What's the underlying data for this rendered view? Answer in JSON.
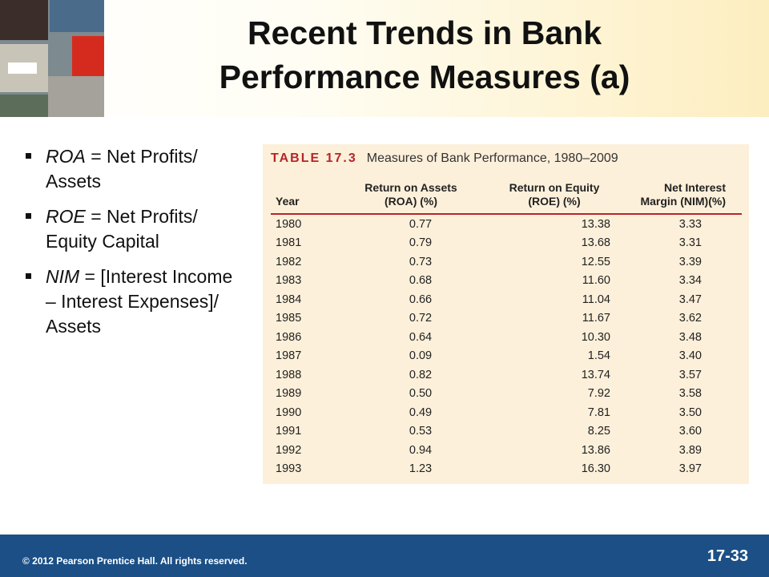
{
  "header": {
    "title": "Recent Trends in Bank Performance Measures (a)"
  },
  "bullets": [
    {
      "term": "ROA",
      "text": " = Net Profits/ Assets"
    },
    {
      "term": "ROE",
      "text": " = Net Profits/ Equity Capital"
    },
    {
      "term": "NIM",
      "text": " = [Interest Income – Interest Expenses]/ Assets"
    }
  ],
  "table": {
    "label": "TABLE 17.3",
    "caption": "Measures of Bank Performance, 1980–2009",
    "columns": [
      [
        "Year"
      ],
      [
        "Return on Assets",
        "(ROA) (%)"
      ],
      [
        "Return on Equity",
        "(ROE) (%)"
      ],
      [
        "Net Interest",
        "Margin (NIM)(%)"
      ]
    ],
    "rows": [
      [
        "1980",
        "0.77",
        "13.38",
        "3.33"
      ],
      [
        "1981",
        "0.79",
        "13.68",
        "3.31"
      ],
      [
        "1982",
        "0.73",
        "12.55",
        "3.39"
      ],
      [
        "1983",
        "0.68",
        "11.60",
        "3.34"
      ],
      [
        "1984",
        "0.66",
        "11.04",
        "3.47"
      ],
      [
        "1985",
        "0.72",
        "11.67",
        "3.62"
      ],
      [
        "1986",
        "0.64",
        "10.30",
        "3.48"
      ],
      [
        "1987",
        "0.09",
        "1.54",
        "3.40"
      ],
      [
        "1988",
        "0.82",
        "13.74",
        "3.57"
      ],
      [
        "1989",
        "0.50",
        "7.92",
        "3.58"
      ],
      [
        "1990",
        "0.49",
        "7.81",
        "3.50"
      ],
      [
        "1991",
        "0.53",
        "8.25",
        "3.60"
      ],
      [
        "1992",
        "0.94",
        "13.86",
        "3.89"
      ],
      [
        "1993",
        "1.23",
        "16.30",
        "3.97"
      ]
    ]
  },
  "footer": {
    "copyright": "© 2012 Pearson Prentice Hall. All rights reserved.",
    "page": "17-33"
  }
}
